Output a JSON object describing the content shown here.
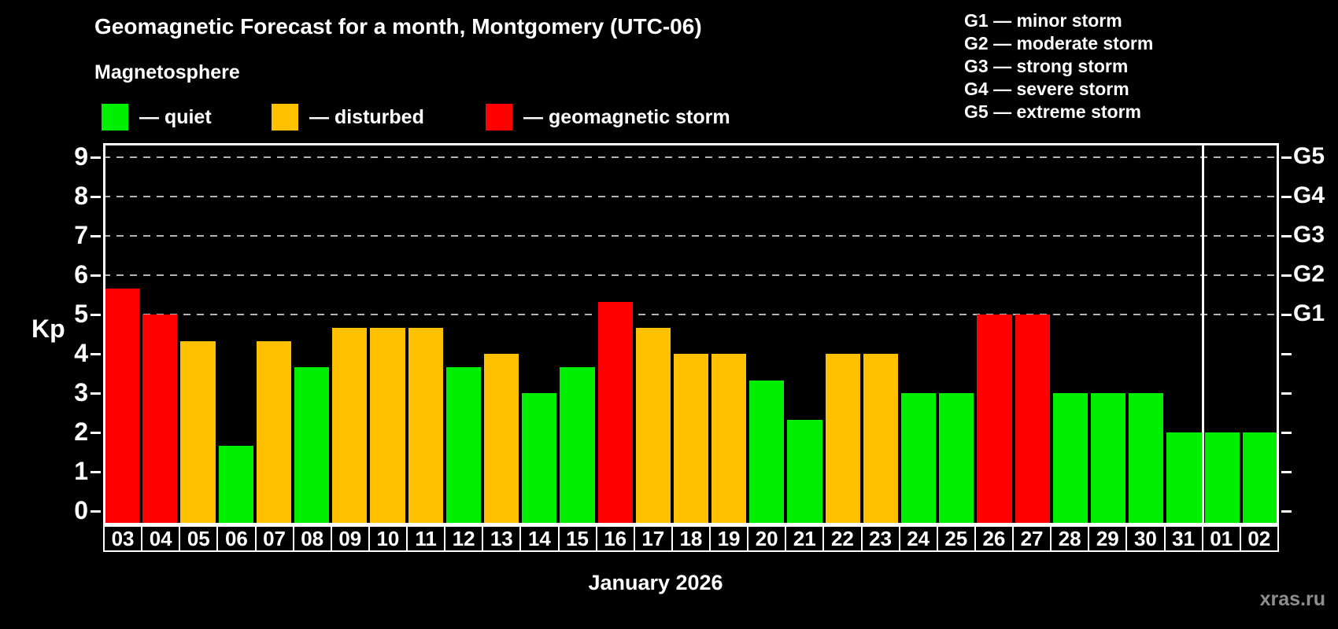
{
  "title": "Geomagnetic Forecast for a month, Montgomery (UTC-06)",
  "subtitle": "Magnetosphere",
  "watermark": "xras.ru",
  "legend": {
    "items": [
      {
        "key": "quiet",
        "label": "quiet",
        "color": "#00ee00"
      },
      {
        "key": "disturbed",
        "label": "disturbed",
        "color": "#ffc000"
      },
      {
        "key": "storm",
        "label": "geomagnetic storm",
        "color": "#ff0000"
      }
    ]
  },
  "g_legend": {
    "items": [
      {
        "code": "G1",
        "label": "minor storm"
      },
      {
        "code": "G2",
        "label": "moderate storm"
      },
      {
        "code": "G3",
        "label": "strong storm"
      },
      {
        "code": "G4",
        "label": "severe storm"
      },
      {
        "code": "G5",
        "label": "extreme storm"
      }
    ]
  },
  "chart_data": {
    "type": "bar",
    "title": "Geomagnetic Forecast for a month, Montgomery (UTC-06)",
    "ylabel": "Kp",
    "xlabel": "January 2026",
    "ylim": [
      0,
      9
    ],
    "yticks": [
      0,
      1,
      2,
      3,
      4,
      5,
      6,
      7,
      8,
      9
    ],
    "gridlines_at": [
      5,
      6,
      7,
      8,
      9
    ],
    "grid_style": "dashed",
    "legend_position": "top-left",
    "right_axis_labels": [
      {
        "kp": 5,
        "label": "G1"
      },
      {
        "kp": 6,
        "label": "G2"
      },
      {
        "kp": 7,
        "label": "G3"
      },
      {
        "kp": 8,
        "label": "G4"
      },
      {
        "kp": 9,
        "label": "G5"
      }
    ],
    "categories": [
      "03",
      "04",
      "05",
      "06",
      "07",
      "08",
      "09",
      "10",
      "11",
      "12",
      "13",
      "14",
      "15",
      "16",
      "17",
      "18",
      "19",
      "20",
      "21",
      "22",
      "23",
      "24",
      "25",
      "26",
      "27",
      "28",
      "29",
      "30",
      "31",
      "01",
      "02"
    ],
    "values": [
      5.67,
      5,
      4.33,
      1.67,
      4.33,
      3.67,
      4.67,
      4.67,
      4.67,
      3.67,
      4,
      3,
      3.67,
      5.33,
      4.67,
      4,
      4,
      3.33,
      2.33,
      4,
      4,
      3,
      3,
      5,
      5,
      3,
      3,
      3,
      2,
      2,
      2
    ],
    "statuses": [
      "storm",
      "storm",
      "disturbed",
      "quiet",
      "disturbed",
      "quiet",
      "disturbed",
      "disturbed",
      "disturbed",
      "quiet",
      "disturbed",
      "quiet",
      "quiet",
      "storm",
      "disturbed",
      "disturbed",
      "disturbed",
      "quiet",
      "quiet",
      "disturbed",
      "disturbed",
      "quiet",
      "quiet",
      "storm",
      "storm",
      "quiet",
      "quiet",
      "quiet",
      "quiet",
      "quiet",
      "quiet"
    ],
    "color_map": {
      "quiet": "#00ee00",
      "disturbed": "#ffc000",
      "storm": "#ff0000"
    },
    "month_separator_after": "31"
  }
}
